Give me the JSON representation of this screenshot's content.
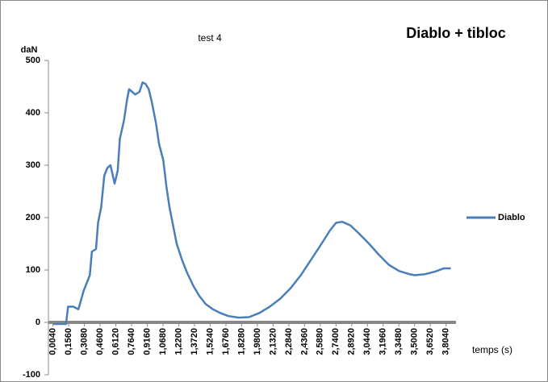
{
  "chart_data": {
    "type": "line",
    "title": "test 4",
    "annotation": "Diablo + tibloc",
    "y_label": "daN",
    "x_label": "temps (s)",
    "legend": "right",
    "grid": false,
    "xlim": [
      -0.04,
      3.9
    ],
    "ylim": [
      -100,
      500
    ],
    "yticks": [
      -100,
      0,
      100,
      200,
      300,
      400,
      500
    ],
    "xticks": [
      {
        "value": 0.004,
        "label": "0,0040"
      },
      {
        "value": 0.156,
        "label": "0,1560"
      },
      {
        "value": 0.308,
        "label": "0,3080"
      },
      {
        "value": 0.46,
        "label": "0,4600"
      },
      {
        "value": 0.612,
        "label": "0,6120"
      },
      {
        "value": 0.764,
        "label": "0,7640"
      },
      {
        "value": 0.916,
        "label": "0,9160"
      },
      {
        "value": 1.068,
        "label": "1,0680"
      },
      {
        "value": 1.22,
        "label": "1,2200"
      },
      {
        "value": 1.372,
        "label": "1,3720"
      },
      {
        "value": 1.524,
        "label": "1,5240"
      },
      {
        "value": 1.676,
        "label": "1,6760"
      },
      {
        "value": 1.828,
        "label": "1,8280"
      },
      {
        "value": 1.98,
        "label": "1,9800"
      },
      {
        "value": 2.132,
        "label": "2,1320"
      },
      {
        "value": 2.284,
        "label": "2,2840"
      },
      {
        "value": 2.436,
        "label": "2,4360"
      },
      {
        "value": 2.588,
        "label": "2,5880"
      },
      {
        "value": 2.74,
        "label": "2,7400"
      },
      {
        "value": 2.892,
        "label": "2,8920"
      },
      {
        "value": 3.044,
        "label": "3,0440"
      },
      {
        "value": 3.196,
        "label": "3,1960"
      },
      {
        "value": 3.348,
        "label": "3,3480"
      },
      {
        "value": 3.5,
        "label": "3,5000"
      },
      {
        "value": 3.652,
        "label": "3,6520"
      },
      {
        "value": 3.804,
        "label": "3,8040"
      }
    ],
    "x": [
      0.004,
      0.13,
      0.15,
      0.2,
      0.25,
      0.3,
      0.36,
      0.38,
      0.42,
      0.44,
      0.47,
      0.5,
      0.53,
      0.56,
      0.6,
      0.63,
      0.65,
      0.69,
      0.72,
      0.74,
      0.8,
      0.84,
      0.87,
      0.9,
      0.93,
      0.96,
      1.0,
      1.03,
      1.07,
      1.1,
      1.13,
      1.17,
      1.2,
      1.25,
      1.3,
      1.36,
      1.42,
      1.48,
      1.55,
      1.62,
      1.7,
      1.8,
      1.9,
      2.0,
      2.1,
      2.2,
      2.3,
      2.4,
      2.5,
      2.6,
      2.68,
      2.74,
      2.8,
      2.88,
      2.96,
      3.06,
      3.15,
      3.25,
      3.35,
      3.45,
      3.5,
      3.6,
      3.7,
      3.78,
      3.85
    ],
    "series": [
      {
        "name": "Diablo",
        "color": "#4a7ebb",
        "values": [
          -3,
          -3,
          30,
          30,
          25,
          60,
          90,
          135,
          140,
          190,
          220,
          280,
          295,
          300,
          265,
          290,
          350,
          385,
          425,
          445,
          435,
          440,
          458,
          455,
          445,
          420,
          380,
          340,
          310,
          260,
          220,
          180,
          150,
          120,
          95,
          70,
          50,
          35,
          25,
          18,
          12,
          9,
          10,
          18,
          30,
          45,
          65,
          90,
          120,
          150,
          175,
          190,
          192,
          185,
          170,
          150,
          130,
          110,
          98,
          92,
          90,
          92,
          97,
          103,
          103
        ]
      }
    ]
  }
}
